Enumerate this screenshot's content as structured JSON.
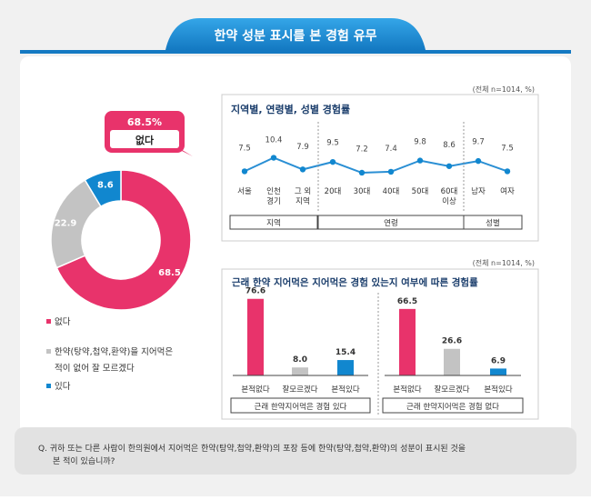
{
  "header": {
    "title": "한약 성분 표시를 본 경험 유무"
  },
  "colors": {
    "accent_blue": "#1187cf",
    "pink": "#e8336b",
    "gray": "#c3c3c3",
    "line_blue": "#2a8fd4",
    "header_blue": "#1a8dd6",
    "background": "#f1f1f1"
  },
  "question": {
    "line1": "Q. 귀하 또는 다른 사람이 한의원에서 지어먹은 한약(탕약,첩약,환약)의 포장 등에 한약(탕약,첩약,환약)의 성분이 표시된 것을",
    "line2": "본 적이 있습니까?"
  },
  "chart_data": [
    {
      "type": "pie",
      "donut": true,
      "callout": {
        "value": "68.5%",
        "label": "없다"
      },
      "slices": [
        {
          "label": "없다",
          "value": 68.5,
          "color": "#e8336b"
        },
        {
          "label": "한약(탕약,첩약,환약)을 지어먹은 적이 없어 잘 모르겠다",
          "value": 22.9,
          "color": "#c3c3c3"
        },
        {
          "label": "있다",
          "value": 8.6,
          "color": "#1187cf"
        }
      ],
      "legend": {
        "placement": "bottom",
        "items": [
          {
            "lines": [
              "없다"
            ],
            "color": "#e8336b"
          },
          {
            "lines": [
              "한약(탕약,첩약,환약)을 지어먹은",
              "적이 없어 잘 모르겠다"
            ],
            "color": "#c3c3c3"
          },
          {
            "lines": [
              "있다"
            ],
            "color": "#1187cf"
          }
        ]
      }
    },
    {
      "type": "line",
      "note": "(전체 n=1014, %)",
      "title": "지역별, 연령별, 성별 경험률",
      "categories": [
        [
          "서울"
        ],
        [
          "인천",
          "경기"
        ],
        [
          "그 외",
          "지역"
        ],
        [
          "20대"
        ],
        [
          "30대"
        ],
        [
          "40대"
        ],
        [
          "50대"
        ],
        [
          "60대",
          "이상"
        ],
        [
          "남자"
        ],
        [
          "여자"
        ]
      ],
      "values": [
        7.5,
        10.4,
        7.9,
        9.5,
        7.2,
        7.4,
        9.8,
        8.6,
        9.7,
        7.5
      ],
      "groups": [
        {
          "label": "지역",
          "count": 3
        },
        {
          "label": "연령",
          "count": 5
        },
        {
          "label": "성별",
          "count": 2
        }
      ]
    },
    {
      "type": "bar",
      "note": "(전체 n=1014, %)",
      "title": "근래 한약 지어먹은 지어먹은 경험 있는지 여부에 따른 경험률",
      "categories": [
        "본적없다",
        "잘모르겠다",
        "본적있다"
      ],
      "series": [
        {
          "group": "근래 한약지어먹은 경험 있다",
          "values": [
            76.6,
            8.0,
            15.4
          ]
        },
        {
          "group": "근래 한약지어먹은 경험 없다",
          "values": [
            66.5,
            26.6,
            6.9
          ]
        }
      ],
      "value_labels": [
        [
          "76.6",
          "8.0",
          "15.4"
        ],
        [
          "66.5",
          "26.6",
          "6.9"
        ]
      ],
      "bar_colors": [
        "#e8336b",
        "#c3c3c3",
        "#1187cf"
      ]
    }
  ]
}
